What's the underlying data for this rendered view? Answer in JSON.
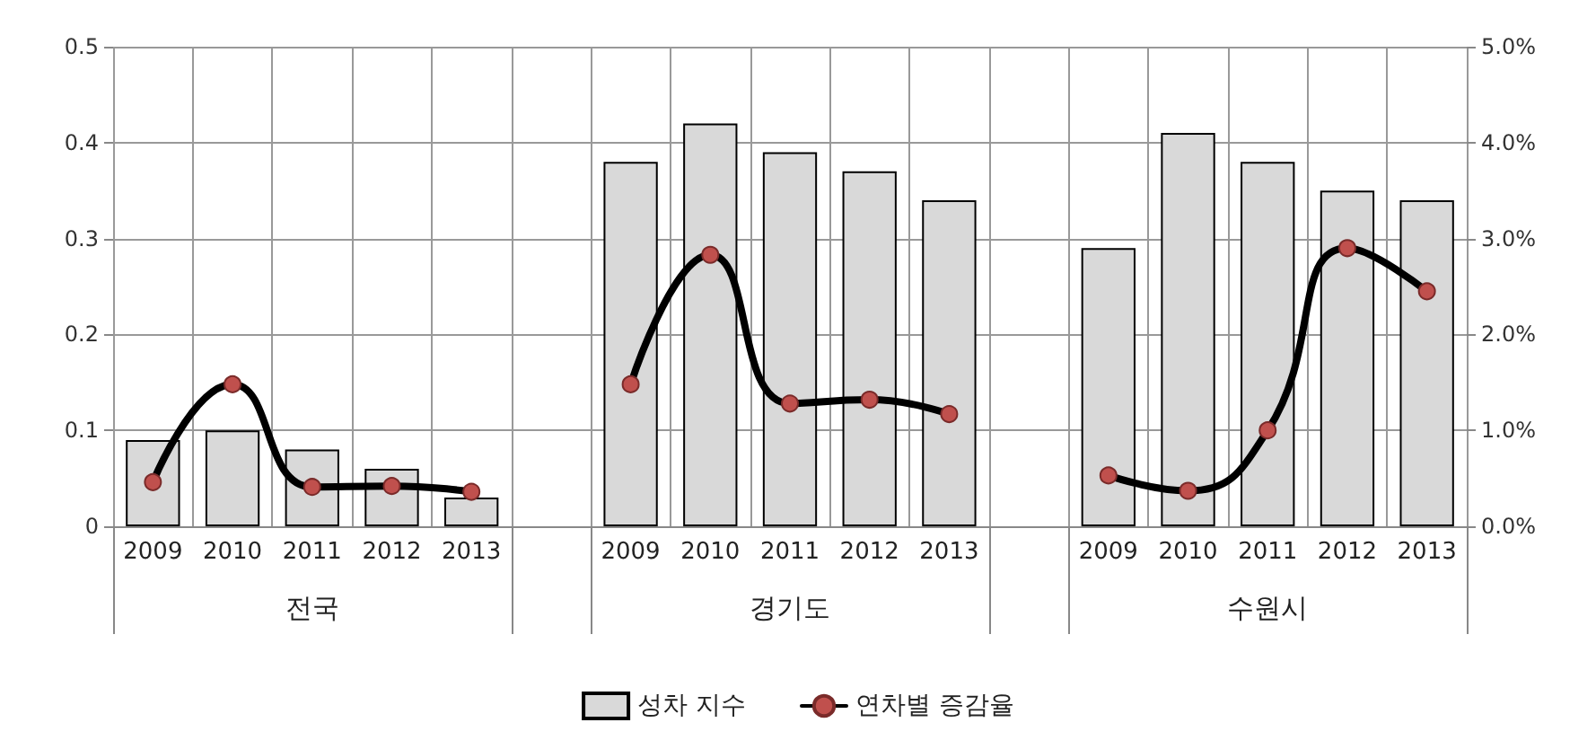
{
  "chart_data": {
    "type": "bar",
    "categories": [
      "2009",
      "2010",
      "2011",
      "2012",
      "2013",
      null,
      "2009",
      "2010",
      "2011",
      "2012",
      "2013",
      null,
      "2009",
      "2010",
      "2011",
      "2012",
      "2013"
    ],
    "annotations": [
      "전국",
      "경기도",
      "수원시"
    ],
    "series": [
      {
        "name": "성차 지수",
        "color": "#d9d9d9",
        "values": [
          0.09,
          0.1,
          0.08,
          0.06,
          0.03,
          null,
          0.38,
          0.42,
          0.39,
          0.37,
          0.34,
          null,
          0.29,
          0.41,
          0.38,
          0.35,
          0.34
        ]
      },
      {
        "name": "연차별 증감율",
        "type": "line",
        "axis": "y2",
        "color": "#000000",
        "values": [
          0.46,
          1.48,
          0.41,
          0.42,
          0.36,
          null,
          1.48,
          2.83,
          1.28,
          1.32,
          1.17,
          null,
          0.53,
          0.37,
          1.0,
          2.9,
          2.45
        ]
      }
    ],
    "ylim": [
      0,
      0.5
    ],
    "yticks": [
      0,
      0.1,
      0.2,
      0.3,
      0.4,
      0.5
    ],
    "y2lim": [
      0,
      5
    ],
    "y2ticks": [
      {
        "value": 0,
        "label": "0.0%"
      },
      {
        "value": 1,
        "label": "1.0%"
      },
      {
        "value": 2,
        "label": "2.0%"
      },
      {
        "value": 3,
        "label": "3.0%"
      },
      {
        "value": 4,
        "label": "4.0%"
      },
      {
        "value": 5,
        "label": "5.0%"
      }
    ],
    "grid": true,
    "legend": "bottom",
    "marker": "circle",
    "line_style": "solid"
  }
}
